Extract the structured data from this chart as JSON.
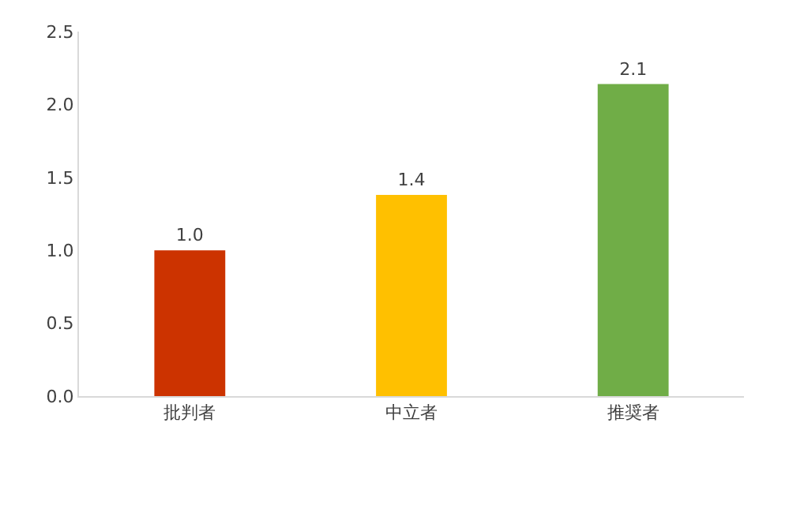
{
  "chart_data": {
    "type": "bar",
    "categories": [
      "批判者",
      "中立者",
      "推奨者"
    ],
    "values": [
      1.0,
      1.38,
      2.14
    ],
    "value_labels": [
      "1.0",
      "1.4",
      "2.1"
    ],
    "colors": [
      "#cc3300",
      "#ffc000",
      "#70ad47"
    ],
    "ylim": [
      0,
      2.5
    ],
    "yticks": [
      {
        "value": 0,
        "label": "0.0"
      },
      {
        "value": 0.5,
        "label": "0.5"
      },
      {
        "value": 1,
        "label": "1.0"
      },
      {
        "value": 1.5,
        "label": "1.5"
      },
      {
        "value": 2,
        "label": "2.0"
      },
      {
        "value": 2.5,
        "label": "2.5"
      }
    ],
    "orientation": "vertical"
  }
}
